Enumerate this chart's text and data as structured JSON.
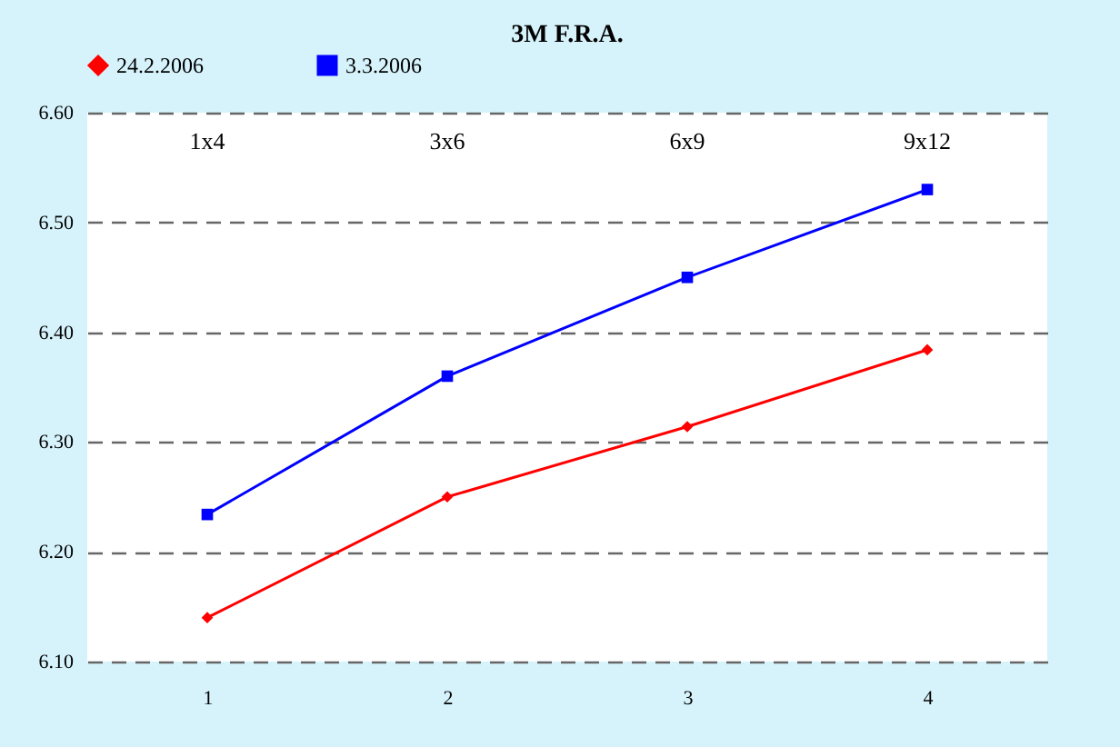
{
  "chart_data": {
    "type": "line",
    "title": "3M F.R.A.",
    "categories": [
      "1",
      "2",
      "3",
      "4"
    ],
    "series": [
      {
        "name": "24.2.2006",
        "color": "#ff0000",
        "marker": "diamond",
        "values": [
          6.14,
          6.25,
          6.314,
          6.384
        ]
      },
      {
        "name": "3.3.2006",
        "color": "#0000ff",
        "marker": "square",
        "values": [
          6.234,
          6.36,
          6.45,
          6.53
        ]
      }
    ],
    "annotations": [
      "1x4",
      "3x6",
      "6x9",
      "9x12"
    ],
    "ylim": [
      6.1,
      6.6
    ],
    "yticks": [
      {
        "value": 6.1,
        "label": "6.10"
      },
      {
        "value": 6.2,
        "label": "6.20"
      },
      {
        "value": 6.3,
        "label": "6.30"
      },
      {
        "value": 6.4,
        "label": "6.40"
      },
      {
        "value": 6.5,
        "label": "6.50"
      },
      {
        "value": 6.6,
        "label": "6.60"
      }
    ],
    "grid": "y",
    "legend": "top",
    "line_style": "solid"
  }
}
